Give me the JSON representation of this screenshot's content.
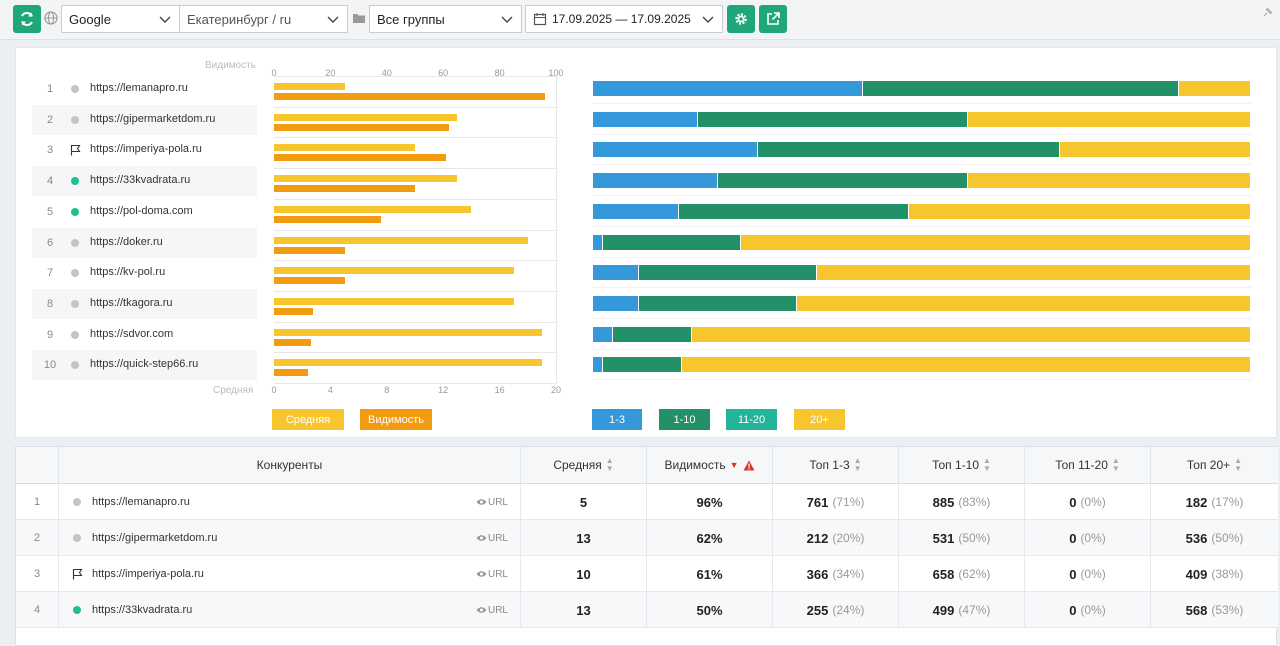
{
  "toolbar": {
    "search_engine": "Google",
    "region": "Екатеринбург / ru",
    "group": "Все группы",
    "date_range": "17.09.2025 — 17.09.2025"
  },
  "chart_left": {
    "top_axis_label": "Видимость",
    "bottom_axis_label": "Средняя",
    "top_ticks": [
      "0",
      "20",
      "40",
      "60",
      "80",
      "100"
    ],
    "bottom_ticks": [
      "0",
      "4",
      "8",
      "12",
      "16",
      "20"
    ]
  },
  "legend_left": {
    "avg": "Средняя",
    "vis": "Видимость"
  },
  "legend_right": [
    "1-3",
    "1-10",
    "11-20",
    "20+"
  ],
  "colors": {
    "avg": "#f7c52e",
    "vis": "#f29b10",
    "top3": "#3498db",
    "top10": "#239167",
    "top20": "#22b59a",
    "top20p": "#f7c52e",
    "green": "#1fa67a"
  },
  "chart_data": {
    "type": "bar",
    "categories": [
      "https://lemanapro.ru",
      "https://gipermarketdom.ru",
      "https://imperiya-pola.ru",
      "https://33kvadrata.ru",
      "https://pol-doma.com",
      "https://doker.ru",
      "https://kv-pol.ru",
      "https://tkagora.ru",
      "https://sdvor.com",
      "https://quick-step66.ru"
    ],
    "series": [
      {
        "name": "Видимость",
        "values": [
          96,
          62,
          61,
          50,
          38,
          25,
          25,
          14,
          13,
          12
        ]
      },
      {
        "name": "Средняя",
        "values": [
          5,
          13,
          10,
          13,
          14,
          18,
          17,
          17,
          19,
          19
        ]
      }
    ],
    "stacked_100": [
      {
        "name": "1-3",
        "values": [
          41,
          16,
          25,
          19,
          13,
          1.5,
          7,
          7,
          3,
          1.5
        ]
      },
      {
        "name": "1-10",
        "values": [
          48,
          41,
          46,
          38,
          35,
          21,
          27,
          24,
          12,
          12
        ]
      },
      {
        "name": "20+",
        "values": [
          11,
          43,
          29,
          43,
          52,
          77.5,
          66,
          69,
          85,
          86.5
        ]
      }
    ]
  },
  "rows": [
    {
      "num": "1",
      "url": "https://lemanapro.ru",
      "marker": "gray"
    },
    {
      "num": "2",
      "url": "https://gipermarketdom.ru",
      "marker": "gray"
    },
    {
      "num": "3",
      "url": "https://imperiya-pola.ru",
      "marker": "flag"
    },
    {
      "num": "4",
      "url": "https://33kvadrata.ru",
      "marker": "green"
    },
    {
      "num": "5",
      "url": "https://pol-doma.com",
      "marker": "green"
    },
    {
      "num": "6",
      "url": "https://doker.ru",
      "marker": "gray"
    },
    {
      "num": "7",
      "url": "https://kv-pol.ru",
      "marker": "gray"
    },
    {
      "num": "8",
      "url": "https://tkagora.ru",
      "marker": "gray"
    },
    {
      "num": "9",
      "url": "https://sdvor.com",
      "marker": "gray"
    },
    {
      "num": "10",
      "url": "https://quick-step66.ru",
      "marker": "gray"
    }
  ],
  "table": {
    "headers": {
      "competitors": "Конкуренты",
      "avg": "Средняя",
      "vis": "Видимость",
      "top3": "Топ 1-3",
      "top10": "Топ 1-10",
      "top1120": "Топ 11-20",
      "top20p": "Топ 20+"
    },
    "url_label": "URL",
    "rows": [
      {
        "num": "1",
        "url": "https://lemanapro.ru",
        "marker": "gray",
        "avg": "5",
        "vis": "96%",
        "top3": "761",
        "top3p": "(71%)",
        "top10": "885",
        "top10p": "(83%)",
        "top1120": "0",
        "top1120p": "(0%)",
        "top20p": "182",
        "top20pp": "(17%)"
      },
      {
        "num": "2",
        "url": "https://gipermarketdom.ru",
        "marker": "gray",
        "avg": "13",
        "vis": "62%",
        "top3": "212",
        "top3p": "(20%)",
        "top10": "531",
        "top10p": "(50%)",
        "top1120": "0",
        "top1120p": "(0%)",
        "top20p": "536",
        "top20pp": "(50%)"
      },
      {
        "num": "3",
        "url": "https://imperiya-pola.ru",
        "marker": "flag",
        "avg": "10",
        "vis": "61%",
        "top3": "366",
        "top3p": "(34%)",
        "top10": "658",
        "top10p": "(62%)",
        "top1120": "0",
        "top1120p": "(0%)",
        "top20p": "409",
        "top20pp": "(38%)"
      },
      {
        "num": "4",
        "url": "https://33kvadrata.ru",
        "marker": "green",
        "avg": "13",
        "vis": "50%",
        "top3": "255",
        "top3p": "(24%)",
        "top10": "499",
        "top10p": "(47%)",
        "top1120": "0",
        "top1120p": "(0%)",
        "top20p": "568",
        "top20pp": "(53%)"
      }
    ]
  }
}
